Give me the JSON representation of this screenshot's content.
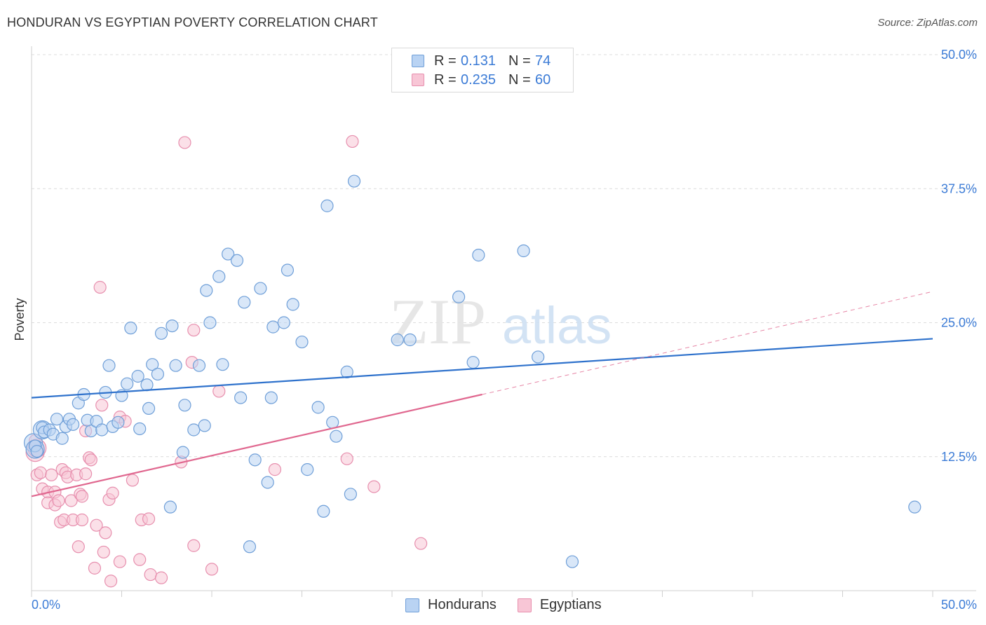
{
  "title": "HONDURAN VS EGYPTIAN POVERTY CORRELATION CHART",
  "source": "Source: ZipAtlas.com",
  "watermark": {
    "zip": "ZIP",
    "atlas": "atlas"
  },
  "legend_top": [
    {
      "r_label": "R =",
      "r_value": "0.131",
      "n_label": "N =",
      "n_value": "74"
    },
    {
      "r_label": "R =",
      "r_value": "0.235",
      "n_label": "N =",
      "n_value": "60"
    }
  ],
  "legend_bottom": [
    "Hondurans",
    "Egyptians"
  ],
  "colors": {
    "blue_fill": "#b9d3f3",
    "blue_stroke": "#6f9fd8",
    "blue_line": "#2f72cc",
    "pink_fill": "#f8c6d6",
    "pink_stroke": "#e78fae",
    "pink_line": "#e0678f",
    "grid": "#dcdcdc",
    "tick_text": "#3b7bd6"
  },
  "chart_data": {
    "type": "scatter",
    "xlabel": "",
    "ylabel": "Poverty",
    "xlim": [
      0,
      50
    ],
    "ylim": [
      0,
      50
    ],
    "x_tick_labels": [
      "0.0%",
      "50.0%"
    ],
    "y_ticks": [
      12.5,
      25.0,
      37.5,
      50.0
    ],
    "y_tick_labels": [
      "12.5%",
      "25.0%",
      "37.5%",
      "50.0%"
    ],
    "grid": true,
    "legend_position": "top-center",
    "series": [
      {
        "name": "Hondurans",
        "r": 0.131,
        "n": 74,
        "trend": {
          "x": [
            0,
            50
          ],
          "y": [
            18.0,
            23.5
          ],
          "dashed_extension": false
        },
        "points": [
          [
            0.2,
            13.5
          ],
          [
            0.3,
            13.0
          ],
          [
            0.6,
            15.2
          ],
          [
            0.7,
            14.8
          ],
          [
            1.0,
            15.0
          ],
          [
            1.2,
            14.6
          ],
          [
            1.4,
            16.0
          ],
          [
            1.7,
            14.2
          ],
          [
            1.9,
            15.3
          ],
          [
            2.1,
            16.0
          ],
          [
            2.3,
            15.5
          ],
          [
            2.6,
            17.5
          ],
          [
            2.9,
            18.3
          ],
          [
            3.1,
            15.9
          ],
          [
            3.3,
            14.9
          ],
          [
            3.6,
            15.8
          ],
          [
            3.9,
            15.0
          ],
          [
            4.1,
            18.5
          ],
          [
            4.3,
            21.0
          ],
          [
            4.5,
            15.3
          ],
          [
            4.8,
            15.7
          ],
          [
            5.0,
            18.2
          ],
          [
            5.3,
            19.3
          ],
          [
            5.5,
            24.5
          ],
          [
            5.9,
            20.0
          ],
          [
            6.0,
            15.1
          ],
          [
            6.4,
            19.2
          ],
          [
            6.5,
            17.0
          ],
          [
            6.7,
            21.1
          ],
          [
            7.0,
            20.2
          ],
          [
            7.2,
            24.0
          ],
          [
            7.7,
            7.8
          ],
          [
            7.8,
            24.7
          ],
          [
            8.0,
            21.0
          ],
          [
            8.4,
            12.9
          ],
          [
            8.5,
            17.3
          ],
          [
            9.0,
            15.0
          ],
          [
            9.3,
            21.0
          ],
          [
            9.6,
            15.4
          ],
          [
            9.7,
            28.0
          ],
          [
            9.9,
            25.0
          ],
          [
            10.4,
            29.3
          ],
          [
            10.6,
            21.1
          ],
          [
            10.9,
            31.4
          ],
          [
            11.4,
            30.8
          ],
          [
            11.6,
            18.0
          ],
          [
            11.8,
            26.9
          ],
          [
            12.1,
            4.1
          ],
          [
            12.4,
            12.2
          ],
          [
            12.7,
            28.2
          ],
          [
            13.1,
            10.1
          ],
          [
            13.3,
            18.0
          ],
          [
            13.4,
            24.6
          ],
          [
            14.0,
            25.0
          ],
          [
            14.2,
            29.9
          ],
          [
            14.5,
            26.7
          ],
          [
            15.0,
            23.2
          ],
          [
            15.3,
            11.3
          ],
          [
            15.9,
            17.1
          ],
          [
            16.2,
            7.4
          ],
          [
            16.4,
            35.9
          ],
          [
            16.7,
            15.7
          ],
          [
            16.9,
            14.4
          ],
          [
            17.5,
            20.4
          ],
          [
            17.7,
            9.0
          ],
          [
            17.9,
            38.2
          ],
          [
            20.3,
            23.4
          ],
          [
            21.0,
            23.4
          ],
          [
            23.7,
            27.4
          ],
          [
            24.5,
            21.3
          ],
          [
            24.8,
            31.3
          ],
          [
            27.3,
            31.7
          ],
          [
            28.1,
            21.8
          ],
          [
            30.0,
            2.7
          ],
          [
            49.0,
            7.8
          ]
        ],
        "large_points": [
          [
            0.1,
            13.8
          ],
          [
            0.2,
            13.2
          ],
          [
            0.6,
            15.0
          ]
        ]
      },
      {
        "name": "Egyptians",
        "r": 0.235,
        "n": 60,
        "trend": {
          "x": [
            0,
            25
          ],
          "y": [
            8.8,
            18.3
          ],
          "dashed_extension": {
            "x": [
              25,
              50
            ],
            "y": [
              18.3,
              27.9
            ]
          }
        },
        "points": [
          [
            0.2,
            14.0
          ],
          [
            0.3,
            13.0
          ],
          [
            0.3,
            10.8
          ],
          [
            0.5,
            11.0
          ],
          [
            0.6,
            9.5
          ],
          [
            0.9,
            9.2
          ],
          [
            0.9,
            8.2
          ],
          [
            1.1,
            10.8
          ],
          [
            1.3,
            9.2
          ],
          [
            1.3,
            8.0
          ],
          [
            1.5,
            8.4
          ],
          [
            1.6,
            6.4
          ],
          [
            1.7,
            11.3
          ],
          [
            1.8,
            6.6
          ],
          [
            1.9,
            11.0
          ],
          [
            2.0,
            10.6
          ],
          [
            2.2,
            8.4
          ],
          [
            2.3,
            6.6
          ],
          [
            2.5,
            10.8
          ],
          [
            2.6,
            4.1
          ],
          [
            2.7,
            9.0
          ],
          [
            2.8,
            8.8
          ],
          [
            2.8,
            6.6
          ],
          [
            3.0,
            14.9
          ],
          [
            3.0,
            10.9
          ],
          [
            3.2,
            12.4
          ],
          [
            3.3,
            12.2
          ],
          [
            3.5,
            2.1
          ],
          [
            3.6,
            6.1
          ],
          [
            3.8,
            28.3
          ],
          [
            3.9,
            17.3
          ],
          [
            4.0,
            3.6
          ],
          [
            4.1,
            5.4
          ],
          [
            4.3,
            8.5
          ],
          [
            4.4,
            0.9
          ],
          [
            4.5,
            9.1
          ],
          [
            4.9,
            16.2
          ],
          [
            4.9,
            2.7
          ],
          [
            5.2,
            15.8
          ],
          [
            5.6,
            10.3
          ],
          [
            6.0,
            2.9
          ],
          [
            6.1,
            6.6
          ],
          [
            6.5,
            6.7
          ],
          [
            6.6,
            1.5
          ],
          [
            7.2,
            1.2
          ],
          [
            8.3,
            12.0
          ],
          [
            8.5,
            41.8
          ],
          [
            8.9,
            21.3
          ],
          [
            9.0,
            24.3
          ],
          [
            9.0,
            4.2
          ],
          [
            10.0,
            2.0
          ],
          [
            10.4,
            18.6
          ],
          [
            13.5,
            11.3
          ],
          [
            17.5,
            12.3
          ],
          [
            17.8,
            41.9
          ],
          [
            19.0,
            9.7
          ],
          [
            21.6,
            4.4
          ]
        ],
        "large_points": [
          [
            0.2,
            12.9
          ],
          [
            0.3,
            13.3
          ]
        ]
      }
    ]
  }
}
